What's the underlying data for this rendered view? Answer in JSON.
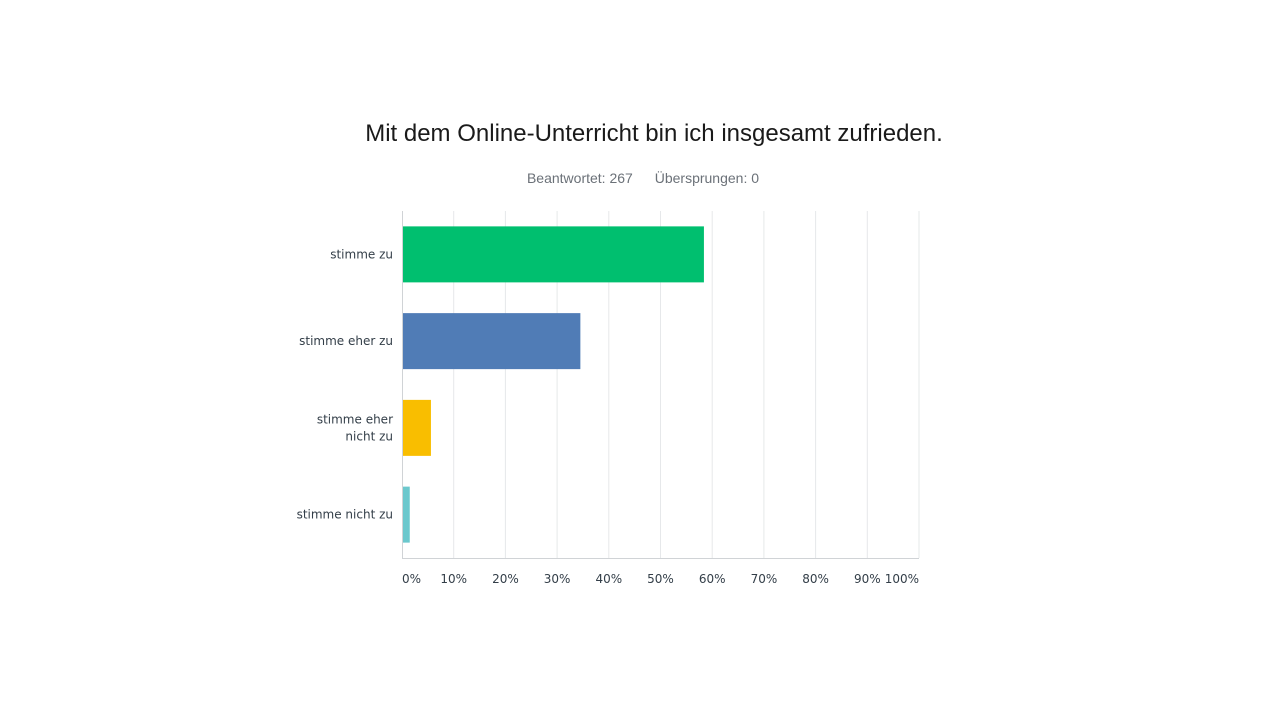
{
  "title": "Mit dem Online-Unterricht bin ich insgesamt zufrieden.",
  "stats": {
    "answered": "Beantwortet: 267",
    "skipped": "Übersprungen: 0"
  },
  "chart_data": {
    "type": "bar",
    "orientation": "horizontal",
    "title": "Mit dem Online-Unterricht bin ich insgesamt zufrieden.",
    "categories": [
      [
        "stimme zu"
      ],
      [
        "stimme eher zu"
      ],
      [
        "stimme eher",
        "nicht zu"
      ],
      [
        "stimme nicht zu"
      ]
    ],
    "values": [
      58.4,
      34.5,
      5.6,
      1.5
    ],
    "colors": [
      "#00bf6f",
      "#507cb6",
      "#f9be00",
      "#6bc8cd"
    ],
    "xlim": [
      0,
      100
    ],
    "xticks": [
      "0%",
      "10%",
      "20%",
      "30%",
      "40%",
      "50%",
      "60%",
      "70%",
      "80%",
      "90%",
      "100%"
    ],
    "xlabel": "",
    "ylabel": "",
    "grid": "vertical",
    "legend": "none"
  }
}
